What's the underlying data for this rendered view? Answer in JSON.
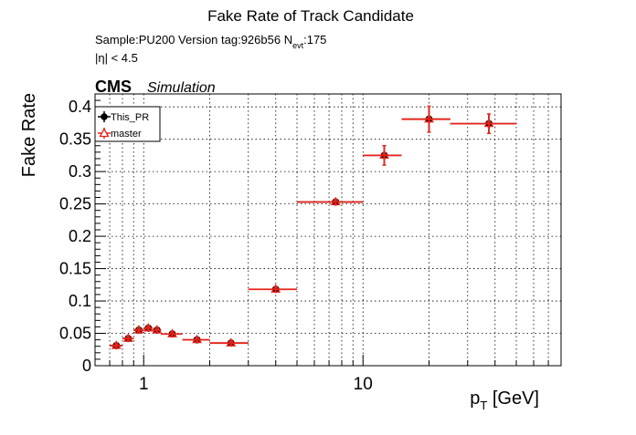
{
  "header": {
    "title": "Fake Rate of Track Candidate",
    "sample_line_prefix": "Sample:PU200   Version tag:926b56  N",
    "sample_line_sub": "evt",
    "sample_line_suffix": ":175",
    "eta_cut": "|η| < 4.5",
    "experiment": "CMS",
    "experiment_tag": "Simulation"
  },
  "chart_data": {
    "type": "scatter",
    "title": "Fake Rate of Track Candidate",
    "xlabel_main": "p",
    "xlabel_sub": "T",
    "xlabel_unit": " [GeV]",
    "ylabel": "Fake Rate",
    "xscale": "log",
    "xlim": [
      0.6,
      80
    ],
    "ylim": [
      0,
      0.42
    ],
    "grid": true,
    "legend_position": "top-left",
    "x_major_ticks": [
      1,
      10
    ],
    "x_major_tick_labels": [
      "1",
      "10"
    ],
    "y_ticks": [
      0,
      0.05,
      0.1,
      0.15,
      0.2,
      0.25,
      0.3,
      0.35,
      0.4
    ],
    "y_tick_labels": [
      "0",
      "0.05",
      "0.1",
      "0.15",
      "0.2",
      "0.25",
      "0.3",
      "0.35",
      "0.4"
    ],
    "bins": [
      {
        "xlo": 0.7,
        "xhi": 0.8,
        "x": 0.75
      },
      {
        "xlo": 0.8,
        "xhi": 0.9,
        "x": 0.85
      },
      {
        "xlo": 0.9,
        "xhi": 1.0,
        "x": 0.95
      },
      {
        "xlo": 1.0,
        "xhi": 1.1,
        "x": 1.05
      },
      {
        "xlo": 1.1,
        "xhi": 1.2,
        "x": 1.15
      },
      {
        "xlo": 1.2,
        "xhi": 1.5,
        "x": 1.35
      },
      {
        "xlo": 1.5,
        "xhi": 2.0,
        "x": 1.75
      },
      {
        "xlo": 2.0,
        "xhi": 3.0,
        "x": 2.5
      },
      {
        "xlo": 3.0,
        "xhi": 5.0,
        "x": 4.0
      },
      {
        "xlo": 5.0,
        "xhi": 10.0,
        "x": 7.5
      },
      {
        "xlo": 10.0,
        "xhi": 15.0,
        "x": 12.5
      },
      {
        "xlo": 15.0,
        "xhi": 25.0,
        "x": 20.0
      },
      {
        "xlo": 25.0,
        "xhi": 50.0,
        "x": 37.5
      }
    ],
    "series": [
      {
        "name": "This_PR",
        "color": "#000000",
        "marker": "filled-circle",
        "values": [
          0.031,
          0.042,
          0.055,
          0.058,
          0.055,
          0.049,
          0.04,
          0.035,
          0.118,
          0.253,
          0.325,
          0.381,
          0.374
        ],
        "errors": [
          0.003,
          0.003,
          0.003,
          0.003,
          0.003,
          0.003,
          0.003,
          0.003,
          0.004,
          0.004,
          0.015,
          0.02,
          0.015
        ]
      },
      {
        "name": "master",
        "color": "#e8231a",
        "marker": "open-triangle",
        "values": [
          0.031,
          0.042,
          0.055,
          0.058,
          0.055,
          0.049,
          0.04,
          0.035,
          0.118,
          0.253,
          0.325,
          0.381,
          0.374
        ],
        "errors": [
          0.003,
          0.003,
          0.003,
          0.003,
          0.003,
          0.003,
          0.003,
          0.003,
          0.004,
          0.004,
          0.015,
          0.02,
          0.015
        ]
      }
    ]
  }
}
